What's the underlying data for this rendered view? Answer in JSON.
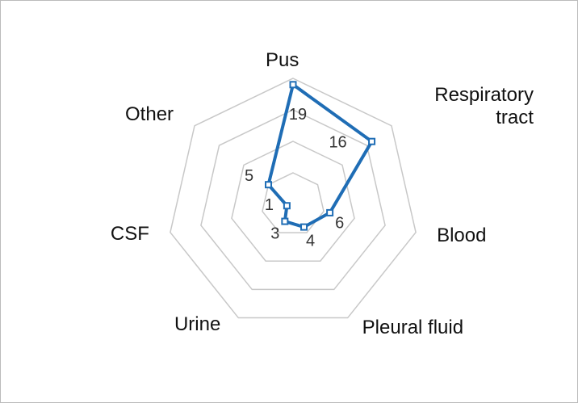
{
  "chart_data": {
    "type": "radar",
    "categories": [
      "Pus",
      "Respiratory tract",
      "Blood",
      "Pleural fluid",
      "Urine",
      "CSF",
      "Other"
    ],
    "values": [
      19,
      16,
      6,
      4,
      3,
      1,
      5
    ],
    "color": "#1f6db5",
    "ylim": [
      0,
      20
    ],
    "yticks": [
      0,
      5,
      10,
      15,
      20
    ],
    "grid": true
  }
}
